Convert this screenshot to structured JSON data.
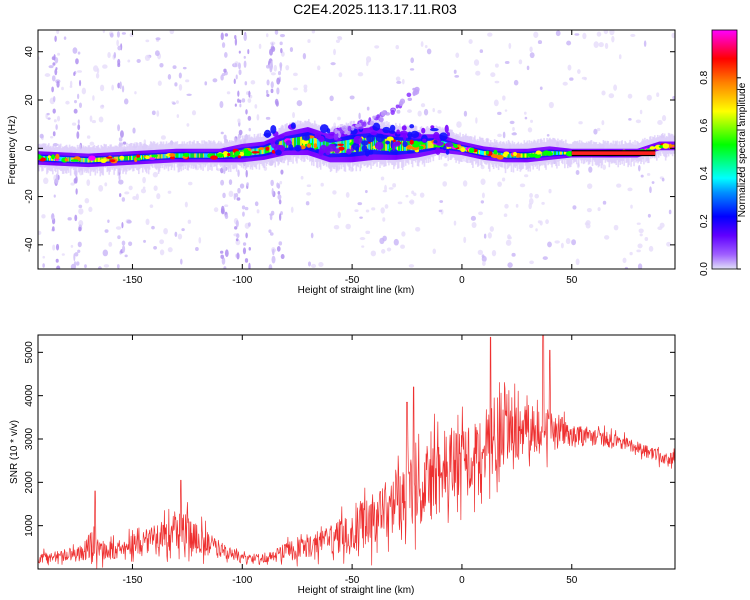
{
  "title": "C2E4.2025.113.17.11.R03",
  "chart_data": [
    {
      "type": "heatmap",
      "xlabel": "Height of straight line (km)",
      "ylabel": "Frequency (Hz)",
      "xlim": [
        -193,
        97
      ],
      "ylim": [
        -50,
        49
      ],
      "xticks": [
        -150,
        -100,
        -50,
        0,
        50
      ],
      "yticks": [
        -40,
        -20,
        0,
        20,
        40
      ],
      "colorbar": {
        "label": "Normalized spectral amplitude",
        "range": [
          0,
          1
        ],
        "ticks": [
          "0.0",
          "0.2",
          "0.4",
          "0.6",
          "0.8"
        ],
        "tick_values": [
          0.0,
          0.2,
          0.4,
          0.6,
          0.8
        ],
        "colormap": [
          "#e0e0f8",
          "#8000ff",
          "#0000ff",
          "#00ffff",
          "#00ff00",
          "#ffff00",
          "#ff8000",
          "#ff0000",
          "#ff00ff"
        ]
      },
      "ridge": {
        "x": [
          -193,
          -170,
          -150,
          -130,
          -110,
          -100,
          -90,
          -80,
          -70,
          -60,
          -50,
          -40,
          -30,
          -20,
          -10,
          0,
          10,
          20,
          30,
          40,
          50,
          60,
          70,
          80,
          90,
          97
        ],
        "center_hz": [
          -4,
          -5,
          -4,
          -3,
          -3,
          -2,
          -1,
          2,
          3,
          0,
          1,
          2,
          1,
          1,
          2,
          0,
          -2,
          -3,
          -3,
          -2,
          -2,
          -2,
          -2,
          -2,
          1,
          1
        ],
        "half_width_hz": [
          2,
          2,
          2,
          2,
          2,
          3,
          3,
          4,
          5,
          5,
          6,
          6,
          5,
          4,
          3,
          2,
          2,
          2,
          2,
          2,
          1,
          1,
          1,
          1,
          1,
          1
        ]
      },
      "streak": {
        "x": [
          -60,
          -45,
          -35,
          -25,
          -20
        ],
        "y": [
          5,
          10,
          14,
          20,
          25
        ]
      }
    },
    {
      "type": "line",
      "xlabel": "Height of straight line (km)",
      "ylabel": "SNR (10 * v/v)",
      "xlim": [
        -193,
        97
      ],
      "ylim": [
        0,
        5400
      ],
      "xticks": [
        -150,
        -100,
        -50,
        0,
        50
      ],
      "yticks": [
        1000,
        2000,
        3000,
        4000,
        5000
      ],
      "series": [
        {
          "color": "#ee3030",
          "x": [
            -193,
            -185,
            -175,
            -168,
            -165,
            -160,
            -150,
            -140,
            -130,
            -125,
            -120,
            -110,
            -100,
            -90,
            -80,
            -70,
            -60,
            -50,
            -40,
            -30,
            -20,
            -10,
            0,
            10,
            20,
            30,
            40,
            50,
            60,
            70,
            80,
            90,
            97
          ],
          "mean": [
            250,
            300,
            350,
            500,
            450,
            400,
            550,
            700,
            850,
            900,
            700,
            450,
            250,
            250,
            400,
            500,
            650,
            900,
            1200,
            1550,
            1900,
            2150,
            2450,
            2850,
            3100,
            3200,
            3250,
            3100,
            3050,
            2950,
            2800,
            2600,
            2550
          ],
          "noise": [
            150,
            150,
            200,
            500,
            300,
            250,
            300,
            400,
            500,
            600,
            450,
            250,
            120,
            120,
            250,
            300,
            400,
            650,
            800,
            900,
            1100,
            1100,
            1100,
            1000,
            900,
            750,
            650,
            350,
            250,
            200,
            180,
            180,
            180
          ],
          "peaks": [
            [
              -167,
              1800
            ],
            [
              -128,
              2050
            ],
            [
              -25,
              3850
            ],
            [
              -22,
              4200
            ],
            [
              13,
              5350
            ],
            [
              37,
              5400
            ],
            [
              40,
              5050
            ]
          ]
        }
      ]
    }
  ]
}
